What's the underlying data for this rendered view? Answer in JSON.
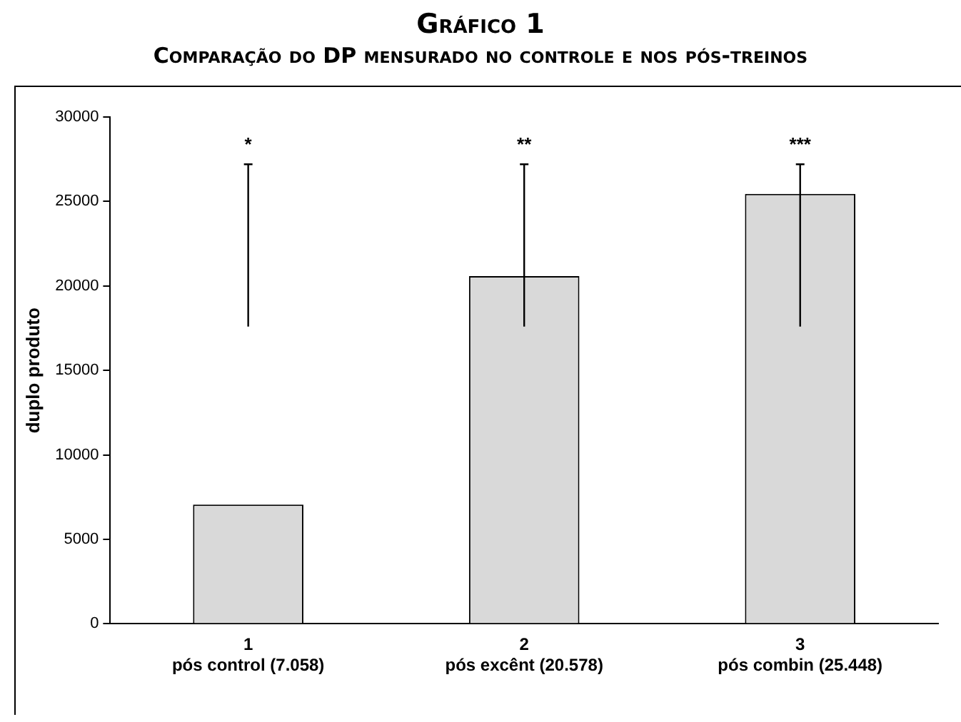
{
  "chart_data": {
    "type": "bar",
    "title": "Gráfico 1",
    "subtitle": "Comparação do DP mensurado no controle e nos pós-treinos",
    "ylabel": "duplo produto",
    "categories": [
      "1\npós control (7.058)",
      "2\npós excênt (20.578)",
      "3\npós combin (25.448)"
    ],
    "values": [
      7058,
      20578,
      25448
    ],
    "color": "#d9d9d9",
    "errors": [
      [
        17600,
        27200
      ],
      [
        17600,
        27200
      ],
      [
        17600,
        27200
      ]
    ],
    "ylim": [
      0,
      30000
    ],
    "yticks": [
      0,
      5000,
      10000,
      15000,
      20000,
      25000,
      30000
    ],
    "grid": false,
    "legend": false,
    "annotations": [
      "*",
      "**",
      "***"
    ]
  }
}
